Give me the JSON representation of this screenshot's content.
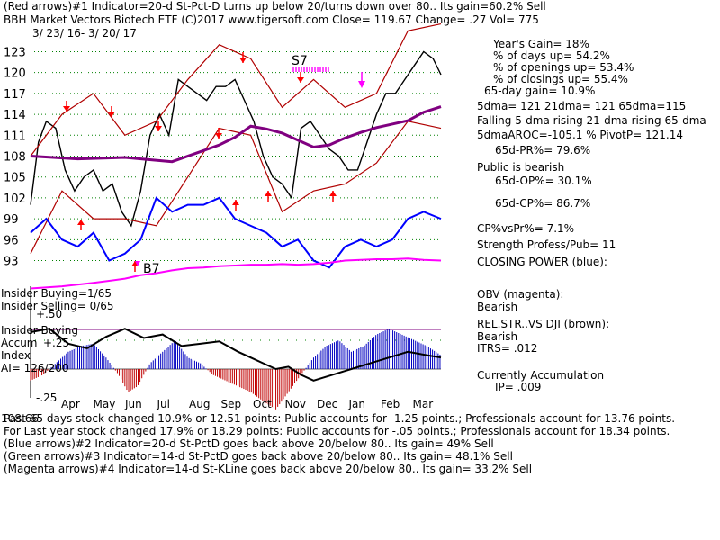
{
  "header": {
    "line1": "(Red arrows)#1 Indicator=20-d St-Pct-D turns up below 20/turns down over 80.. Its gain=60.2% Sell",
    "line2": "BBH   Market Vectors Biotech ETF  (C)2017 www.tigersoft.com     Close=  119.67  Change= .27 Vol= 775",
    "date_range": "3/ 23/ 16-  3/ 20/ 17"
  },
  "stats": {
    "years_gain": "Year's Gain= 18%",
    "pct_days_up": "% of days up= 54.2%",
    "pct_openings_up": "% of openings up= 53.4%",
    "pct_closings_up": "% of closings up= 55.4%",
    "gain_65day": "65-day gain= 10.9%",
    "dma": "5dma= 121  21dma= 121  65dma=115",
    "dma_trend": "Falling 5-dma rising 21-dma rising 65-dma",
    "aroc": "5dmaAROC=-105.1  %  PivotP= 121.14",
    "pr65": "65d-PR%= 79.6%",
    "public": "Public is bearish",
    "op65": "65d-OP%= 30.1%",
    "cp65": "65d-CP%= 86.7%",
    "cpvspr": "CP%vsPr%=  7.1%",
    "strength": "Strength Profess/Pub= 11",
    "closing_power": "CLOSING POWER (blue):",
    "obv": "OBV (magenta):",
    "obv_state": "Bearish",
    "relstr": "REL.STR..VS DJI (brown):",
    "relstr_state": "Bearish",
    "itrs": "ITRS= .012",
    "accum": "Currently Accumulation",
    "ip": "IP=  .009"
  },
  "lower_panel": {
    "insider_buying_1": "Insider Buying=1/65",
    "insider_selling": "Insider Selling= 0/65",
    "insider_buying_2": "Insider Buying",
    "accum_label": "Accum",
    "index_label": "Index",
    "ai": "AI= 126/200",
    "lvl_p50": "+.50",
    "lvl_p25": "+.25",
    "lvl_m25": "-.25",
    "corner_value": "108.66"
  },
  "arrow_labels": {
    "s7": "S7",
    "b7": "B7"
  },
  "footer": {
    "line1": "Past 65 days stock changed  10.9% or  12.51 points:  Public accounts for -1.25 points.;  Professionals account for  13.76 points.",
    "line2": "For Last year stock changed  17.9% or  18.29 points:  Public accounts for -.05 points.;  Professionals account for  18.34 points.",
    "line3": "(Blue arrows)#2 Indicator=20-d St-PctD goes back above 20/below 80.. Its gain= 49% Sell",
    "line4": "(Green arrows)#3 Indicator=14-d St-PctD goes back above 20/below 80.. Its gain= 48.1% Sell",
    "line5": "(Magenta arrows)#4 Indicator=14-d St-KLine goes back above 20/below 80.. Its gain= 33.2% Sell"
  },
  "colors": {
    "price": "#000000",
    "band": "#b00000",
    "ma": "#800080",
    "closing_power": "#0000ff",
    "obv": "#ff00ff",
    "grid": "#008000",
    "accum_pos": "#0000c0",
    "accum_neg": "#c00000",
    "arrow_red": "#ff0000",
    "arrow_magenta": "#ff00ff",
    "insider_line": "#800080"
  },
  "chart_data": {
    "type": "line",
    "price_axis": {
      "ticks": [
        123,
        120,
        117,
        114,
        111,
        108,
        105,
        102,
        99,
        96,
        93
      ],
      "ylim": [
        91,
        125
      ]
    },
    "months": [
      "Apr",
      "May",
      "Jun",
      "Jul",
      "Aug",
      "Sep",
      "Oct",
      "Nov",
      "Dec",
      "Jan",
      "Feb",
      "Mar"
    ],
    "series": [
      {
        "key": "price",
        "x": [
          0,
          5,
          10,
          16,
          22,
          28,
          34,
          40,
          46,
          52,
          58,
          64,
          70,
          76,
          82,
          88,
          94,
          100,
          106,
          112,
          118,
          124,
          130,
          136,
          142,
          148,
          154,
          160,
          166,
          172,
          178,
          184,
          190,
          196,
          202,
          208,
          214,
          220,
          226,
          232,
          238,
          244,
          250,
          256,
          261
        ],
        "y": [
          101,
          110,
          113,
          112,
          106,
          103,
          105,
          106,
          103,
          104,
          100,
          98,
          103,
          111,
          114,
          111,
          119,
          118,
          117,
          116,
          118,
          118,
          119,
          116,
          113,
          108,
          105,
          104,
          102,
          112,
          113,
          111,
          109,
          108,
          106,
          106,
          110,
          114,
          117,
          117,
          119,
          121,
          123,
          122,
          119.7
        ]
      },
      {
        "key": "band_upper",
        "x": [
          0,
          20,
          40,
          60,
          80,
          100,
          120,
          140,
          160,
          180,
          200,
          220,
          240,
          261
        ],
        "y": [
          108,
          114,
          117,
          111,
          113,
          119,
          124,
          122,
          115,
          119,
          115,
          117,
          126,
          127
        ]
      },
      {
        "key": "band_lower",
        "x": [
          0,
          20,
          40,
          60,
          80,
          100,
          120,
          140,
          160,
          180,
          200,
          220,
          240,
          261
        ],
        "y": [
          94,
          103,
          99,
          99,
          98,
          105,
          112,
          111,
          100,
          103,
          104,
          107,
          113,
          112
        ]
      },
      {
        "key": "ma65",
        "x": [
          0,
          30,
          60,
          75,
          90,
          105,
          120,
          130,
          140,
          150,
          160,
          170,
          180,
          190,
          200,
          210,
          220,
          230,
          240,
          250,
          261
        ],
        "y": [
          108,
          107.6,
          107.8,
          107.5,
          107.2,
          108.4,
          109.6,
          110.7,
          112.3,
          111.9,
          111.3,
          110.3,
          109.3,
          109.6,
          110.6,
          111.4,
          112.1,
          112.6,
          113.1,
          114.3,
          115.1
        ]
      },
      {
        "key": "closing_power",
        "x": [
          0,
          10,
          20,
          30,
          40,
          50,
          60,
          70,
          80,
          90,
          100,
          110,
          120,
          130,
          140,
          150,
          160,
          170,
          180,
          190,
          200,
          210,
          220,
          230,
          240,
          250,
          261
        ],
        "y": [
          97,
          99,
          96,
          95,
          97,
          93,
          94,
          96,
          102,
          100,
          101,
          101,
          102,
          99,
          98,
          97,
          95,
          96,
          93,
          92,
          95,
          96,
          95,
          96,
          99,
          100,
          99
        ]
      },
      {
        "key": "obv",
        "x": [
          0,
          20,
          40,
          60,
          70,
          80,
          90,
          100,
          110,
          120,
          130,
          140,
          150,
          160,
          170,
          180,
          190,
          200,
          210,
          220,
          230,
          240,
          250,
          261
        ],
        "y": [
          89,
          89.3,
          89.8,
          90.4,
          90.9,
          91.2,
          91.6,
          91.9,
          92,
          92.2,
          92.3,
          92.4,
          92.4,
          92.5,
          92.4,
          92.5,
          92.7,
          93,
          93.1,
          93.2,
          93.2,
          93.3,
          93.1,
          93
        ]
      }
    ],
    "accumulation_index": {
      "x": [
        0,
        8,
        16,
        24,
        32,
        40,
        48,
        56,
        62,
        68,
        76,
        84,
        92,
        100,
        108,
        116,
        124,
        132,
        140,
        148,
        156,
        164,
        172,
        180,
        188,
        196,
        204,
        212,
        220,
        228,
        236,
        244,
        252,
        261
      ],
      "y": [
        -0.1,
        -0.05,
        0.05,
        0.15,
        0.2,
        0.22,
        0.1,
        -0.05,
        -0.2,
        -0.15,
        0.05,
        0.15,
        0.25,
        0.1,
        0.05,
        -0.05,
        -0.1,
        -0.15,
        -0.2,
        -0.28,
        -0.35,
        -0.2,
        -0.05,
        0.1,
        0.2,
        0.25,
        0.15,
        0.2,
        0.3,
        0.35,
        0.3,
        0.25,
        0.2,
        0.12
      ]
    },
    "relative_strength": {
      "x": [
        0,
        12,
        24,
        36,
        48,
        60,
        72,
        84,
        96,
        108,
        120,
        132,
        140,
        148,
        156,
        164,
        172,
        180,
        192,
        204,
        216,
        228,
        240,
        252,
        261
      ],
      "y": [
        0.32,
        0.35,
        0.22,
        0.18,
        0.28,
        0.35,
        0.27,
        0.3,
        0.2,
        0.22,
        0.24,
        0.15,
        0.1,
        0.05,
        0.0,
        0.02,
        -0.05,
        -0.1,
        -0.05,
        0.0,
        0.05,
        0.1,
        0.15,
        0.12,
        0.1
      ]
    }
  }
}
